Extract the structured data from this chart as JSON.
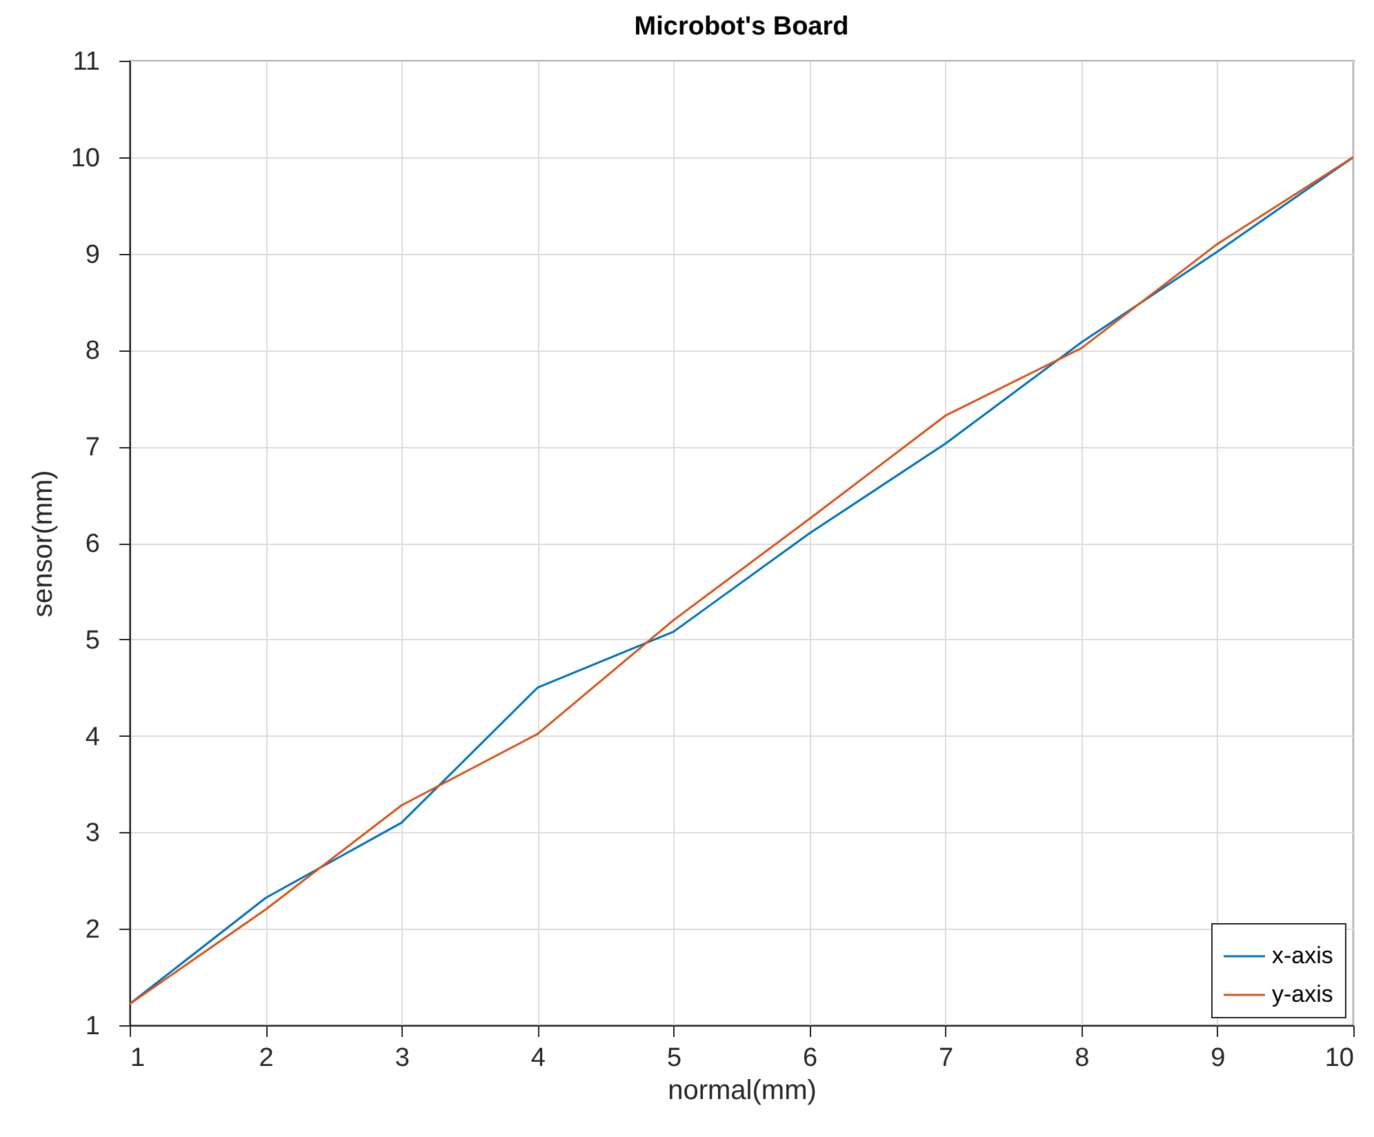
{
  "chart_data": {
    "type": "line",
    "title": "Microbot's Board",
    "xlabel": "normal(mm)",
    "ylabel": "sensor(mm)",
    "x": [
      1,
      2,
      3,
      4,
      5,
      6,
      7,
      8,
      9,
      10
    ],
    "series": [
      {
        "name": "x-axis",
        "color": "#0072bd",
        "values": [
          1.22,
          2.32,
          3.1,
          4.5,
          5.08,
          6.1,
          7.03,
          8.08,
          9.02,
          10
        ]
      },
      {
        "name": "y-axis",
        "color": "#d95319",
        "values": [
          1.22,
          2.2,
          3.28,
          4.02,
          5.2,
          6.25,
          7.32,
          8.02,
          9.1,
          10
        ]
      }
    ],
    "xlim": [
      1,
      10
    ],
    "xticks": [
      1,
      2,
      3,
      4,
      5,
      6,
      7,
      8,
      9,
      10
    ],
    "ylim": [
      1,
      11
    ],
    "yticks": [
      1,
      2,
      3,
      4,
      5,
      6,
      7,
      8,
      9,
      10,
      11
    ],
    "grid": true,
    "legend": "bottom right",
    "marker": "none",
    "line_style": "solid"
  }
}
